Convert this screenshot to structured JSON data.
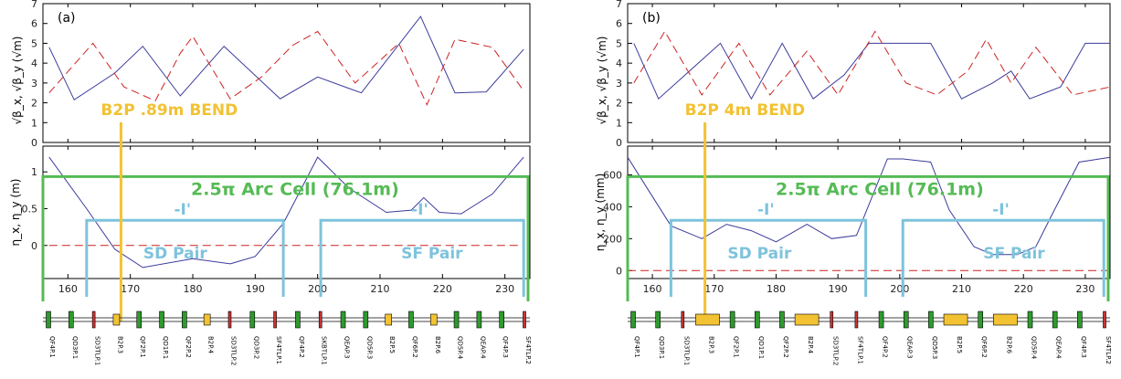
{
  "chart_data": [
    {
      "panel": "(a)",
      "type": "line",
      "top": {
        "ylabel": "√β_x, √β_y (√m)",
        "ylim": [
          0,
          7
        ],
        "yticks": [
          0,
          1,
          2,
          3,
          4,
          5,
          6,
          7
        ],
        "series": [
          {
            "color": "#3b3b9c",
            "dash": "solid",
            "x": [
              157,
              161,
              167.5,
              172,
              178,
              185,
              194,
              200,
              207,
              216.5,
              222,
              227,
              233
            ],
            "y": [
              4.8,
              2.15,
              3.5,
              4.85,
              2.35,
              4.85,
              2.2,
              3.3,
              2.5,
              6.35,
              2.5,
              2.55,
              4.7
            ]
          },
          {
            "color": "#cc2222",
            "dash": "dashed",
            "x": [
              157,
              164,
              169,
              174,
              178,
              180,
              186,
              191,
              196,
              200,
              206,
              213,
              217.5,
              222,
              228,
              233
            ],
            "y": [
              2.5,
              5.0,
              2.8,
              2.1,
              4.5,
              5.35,
              2.2,
              3.3,
              4.9,
              5.6,
              3.0,
              5.0,
              1.9,
              5.2,
              4.8,
              2.6
            ]
          }
        ]
      },
      "bottom": {
        "ylabel": "η_x, η_y (m)",
        "ylim": [
          -0.45,
          1.35
        ],
        "yticks": [
          0,
          0.5,
          1
        ],
        "xlim": [
          156,
          234
        ],
        "xticks": [
          160,
          170,
          180,
          190,
          200,
          210,
          220,
          230
        ],
        "series": [
          {
            "color": "#3b3b9c",
            "dash": "solid",
            "x": [
              157,
              163,
              167.5,
              172,
              180,
              186,
              190,
              194.5,
              200,
              205,
              211,
              215,
              217,
              219.5,
              223,
              228,
              233
            ],
            "y": [
              1.2,
              0.5,
              -0.05,
              -0.3,
              -0.18,
              -0.25,
              -0.15,
              0.3,
              1.2,
              0.78,
              0.45,
              0.48,
              0.65,
              0.45,
              0.43,
              0.7,
              1.2
            ]
          },
          {
            "color": "#cc2222",
            "dash": "dashed",
            "x": [
              157,
              233
            ],
            "y": [
              0,
              0
            ]
          }
        ]
      },
      "annotations": {
        "bend": "B2P .89m BEND",
        "arc_cell": "2.5π Arc Cell (76.1m)",
        "minus_i_left": "-I'",
        "minus_i_right": "-I'",
        "sd_pair": "SD Pair",
        "sf_pair": "SF Pair"
      },
      "lattice_labels": [
        "QF4P.1",
        "QD3P.1",
        "SD3TLP.1",
        "B2P.3",
        "QF2P.1",
        "QD1P.1",
        "QF2P.2",
        "B2P.4",
        "SD3TLP.2",
        "QD3P.2",
        "SF4TLP.1",
        "QF4P.2",
        "SKBTLP.1",
        "QEAP.3",
        "QD5P.3",
        "B2P.5",
        "QF6P.2",
        "B2P.6",
        "QD5P.4",
        "QEAP.4",
        "QF4P.3",
        "SF4TLP.2"
      ]
    },
    {
      "panel": "(b)",
      "type": "line",
      "top": {
        "ylabel": "√β_x, √β_y (√m)",
        "ylim": [
          0,
          7
        ],
        "yticks": [
          0,
          1,
          2,
          3,
          4,
          5,
          6,
          7
        ],
        "series": [
          {
            "color": "#3b3b9c",
            "dash": "solid",
            "x": [
              157,
              161,
              166,
              171,
              176,
              181,
              186,
              191,
              195,
              200,
              205,
              210,
              215,
              218,
              221,
              226,
              230,
              234
            ],
            "y": [
              5.0,
              2.2,
              3.6,
              5.0,
              2.2,
              5.0,
              2.2,
              3.4,
              5.0,
              5.0,
              5.0,
              2.2,
              3.0,
              3.6,
              2.2,
              2.8,
              5.0,
              5.0
            ]
          },
          {
            "color": "#cc2222",
            "dash": "dashed",
            "x": [
              157,
              162,
              168,
              174,
              179,
              185,
              190,
              196,
              201,
              206,
              211,
              214,
              218,
              222,
              228,
              234
            ],
            "y": [
              3.0,
              5.6,
              2.4,
              5.0,
              2.4,
              4.6,
              2.4,
              5.6,
              3.0,
              2.4,
              3.6,
              5.2,
              3.0,
              4.8,
              2.4,
              2.8
            ]
          }
        ]
      },
      "bottom": {
        "ylabel": "η_x, η_y (mm)",
        "ylim": [
          -50,
          780
        ],
        "yticks": [
          0,
          200,
          400,
          600
        ],
        "xlim": [
          156,
          234
        ],
        "xticks": [
          160,
          170,
          180,
          190,
          200,
          210,
          220,
          230
        ],
        "series": [
          {
            "color": "#3b3b9c",
            "dash": "solid",
            "x": [
              156,
              163,
              168,
              172,
              176,
              180,
              185,
              189,
              193,
              198,
              200.5,
              205,
              208,
              212,
              215,
              219,
              222,
              225,
              229,
              234
            ],
            "y": [
              710,
              280,
              200,
              290,
              250,
              180,
              290,
              200,
              220,
              700,
              700,
              680,
              380,
              150,
              100,
              100,
              150,
              380,
              680,
              710
            ]
          },
          {
            "color": "#cc2222",
            "dash": "dashed",
            "x": [
              156,
              234
            ],
            "y": [
              0,
              0
            ]
          }
        ]
      },
      "annotations": {
        "bend": "B2P 4m BEND",
        "arc_cell": "2.5π Arc Cell (76.1m)",
        "minus_i_left": "-I'",
        "minus_i_right": "-I'",
        "sd_pair": "SD Pair",
        "sf_pair": "SF Pair"
      },
      "lattice_labels": [
        "QF4P.1",
        "QD3P.1",
        "SD3TLP.1",
        "B2P.3",
        "QF2P.1",
        "QD1P.1",
        "QF2P.2",
        "B2P.4",
        "SD3TLP.2",
        "SF4TLP.1",
        "QF4P.2",
        "QEAP.3",
        "QD5P.3",
        "B2P.5",
        "QF6P.2",
        "B2P.6",
        "QD5P.4",
        "QEAP.4",
        "QF4P.3",
        "SF4TLP.2"
      ]
    }
  ]
}
